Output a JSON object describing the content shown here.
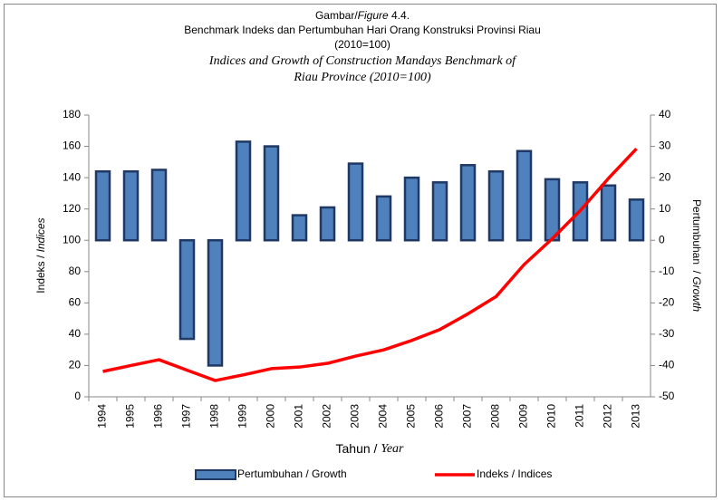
{
  "chart_data": {
    "type": "bar_line",
    "title": [
      "Gambar/",
      "Figure",
      " 4.4."
    ],
    "subtitle": [
      "Benchmark Indeks dan Pertumbuhan Hari Orang Konstruksi Provinsi Riau",
      "(2010=100)"
    ],
    "subtitle_en": [
      "Indices and Growth of Construction Mandays Benchmark of",
      "Riau Province (2010=100)"
    ],
    "ylabel": [
      "Indeks / ",
      "Indices"
    ],
    "y2label": [
      "Pertumbuhan  / ",
      "Growth"
    ],
    "xlabel": [
      "Tahun / ",
      "Year"
    ],
    "categories": [
      "1994",
      "1995",
      "1996",
      "1997",
      "1998",
      "1999",
      "2000",
      "2001",
      "2002",
      "2003",
      "2004",
      "2005",
      "2006",
      "2007",
      "2008",
      "2009",
      "2010",
      "2011",
      "2012",
      "2013"
    ],
    "series": [
      {
        "name": "Pertumbuhan / Growth",
        "type": "bar",
        "axis": "y2",
        "color": "#4f81bd",
        "edge": "#1f3864",
        "values": [
          22,
          22,
          22.5,
          -31.5,
          -40,
          31.5,
          30,
          8,
          10.5,
          24.5,
          14,
          20,
          18.5,
          24,
          22,
          28.5,
          19.5,
          18.5,
          17.5,
          13
        ]
      },
      {
        "name": "Indeks / Indices",
        "type": "line",
        "axis": "y",
        "color": "#ff0000",
        "values": [
          16.2,
          20,
          23.7,
          17,
          10.4,
          14,
          18,
          19,
          21.4,
          26,
          30,
          36,
          43,
          53,
          64,
          84.5,
          101,
          119,
          139.5,
          158.5
        ]
      }
    ],
    "ylim": [
      0,
      180
    ],
    "yticks": [
      0,
      20,
      40,
      60,
      80,
      100,
      120,
      140,
      160,
      180
    ],
    "y2lim": [
      -50,
      40
    ],
    "y2ticks": [
      -50,
      -40,
      -30,
      -20,
      -10,
      0,
      10,
      20,
      30,
      40
    ],
    "legend": "bottom"
  }
}
